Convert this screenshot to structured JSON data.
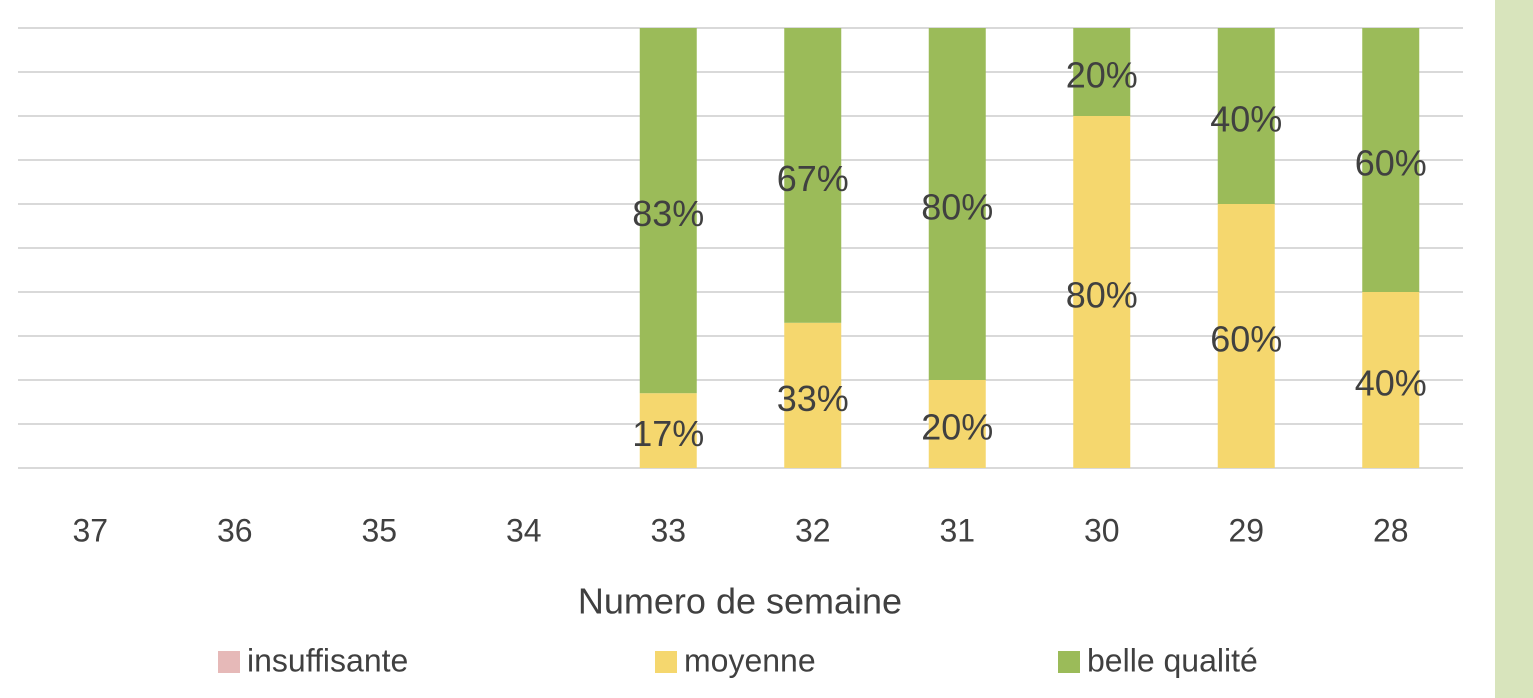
{
  "chart_data": {
    "type": "stacked_bar",
    "x_label": "Numero de semaine",
    "categories": [
      "37",
      "36",
      "35",
      "34",
      "33",
      "32",
      "31",
      "30",
      "29",
      "28"
    ],
    "series": [
      {
        "name": "insuffisante",
        "color": "#e6b9b8",
        "values": [
          null,
          null,
          null,
          null,
          0,
          0,
          0,
          0,
          0,
          0
        ]
      },
      {
        "name": "moyenne",
        "color": "#f5d76e",
        "values": [
          null,
          null,
          null,
          null,
          17,
          33,
          20,
          80,
          60,
          40
        ],
        "value_labels": [
          null,
          null,
          null,
          null,
          "17%",
          "33%",
          "20%",
          "80%",
          "60%",
          "40%"
        ]
      },
      {
        "name": "belle qualité",
        "color": "#9bbb59",
        "values": [
          null,
          null,
          null,
          null,
          83,
          67,
          80,
          20,
          40,
          60
        ],
        "value_labels": [
          null,
          null,
          null,
          null,
          "83%",
          "67%",
          "80%",
          "20%",
          "40%",
          "60%"
        ]
      }
    ],
    "ylim": [
      0,
      100
    ],
    "yticks": [
      0,
      10,
      20,
      30,
      40,
      50,
      60,
      70,
      80,
      90,
      100
    ],
    "grid": true
  }
}
